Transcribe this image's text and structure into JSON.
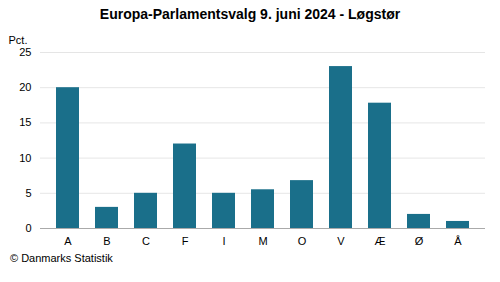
{
  "chart_data": {
    "type": "bar",
    "title": "Europa-Parlamentsvalg 9. juni 2024 - Løgstør",
    "categories": [
      "A",
      "B",
      "C",
      "F",
      "I",
      "M",
      "O",
      "V",
      "Æ",
      "Ø",
      "Å"
    ],
    "values": [
      20.0,
      3.0,
      5.0,
      12.0,
      5.0,
      5.5,
      6.8,
      23.0,
      17.8,
      2.0,
      1.0
    ],
    "color": "#1a6f8a",
    "ylabel": "Pct.",
    "caption": "© Danmarks Statistik",
    "ylim": [
      0,
      25
    ],
    "yticks": [
      0,
      5,
      10,
      15,
      20,
      25
    ],
    "grid": true
  }
}
